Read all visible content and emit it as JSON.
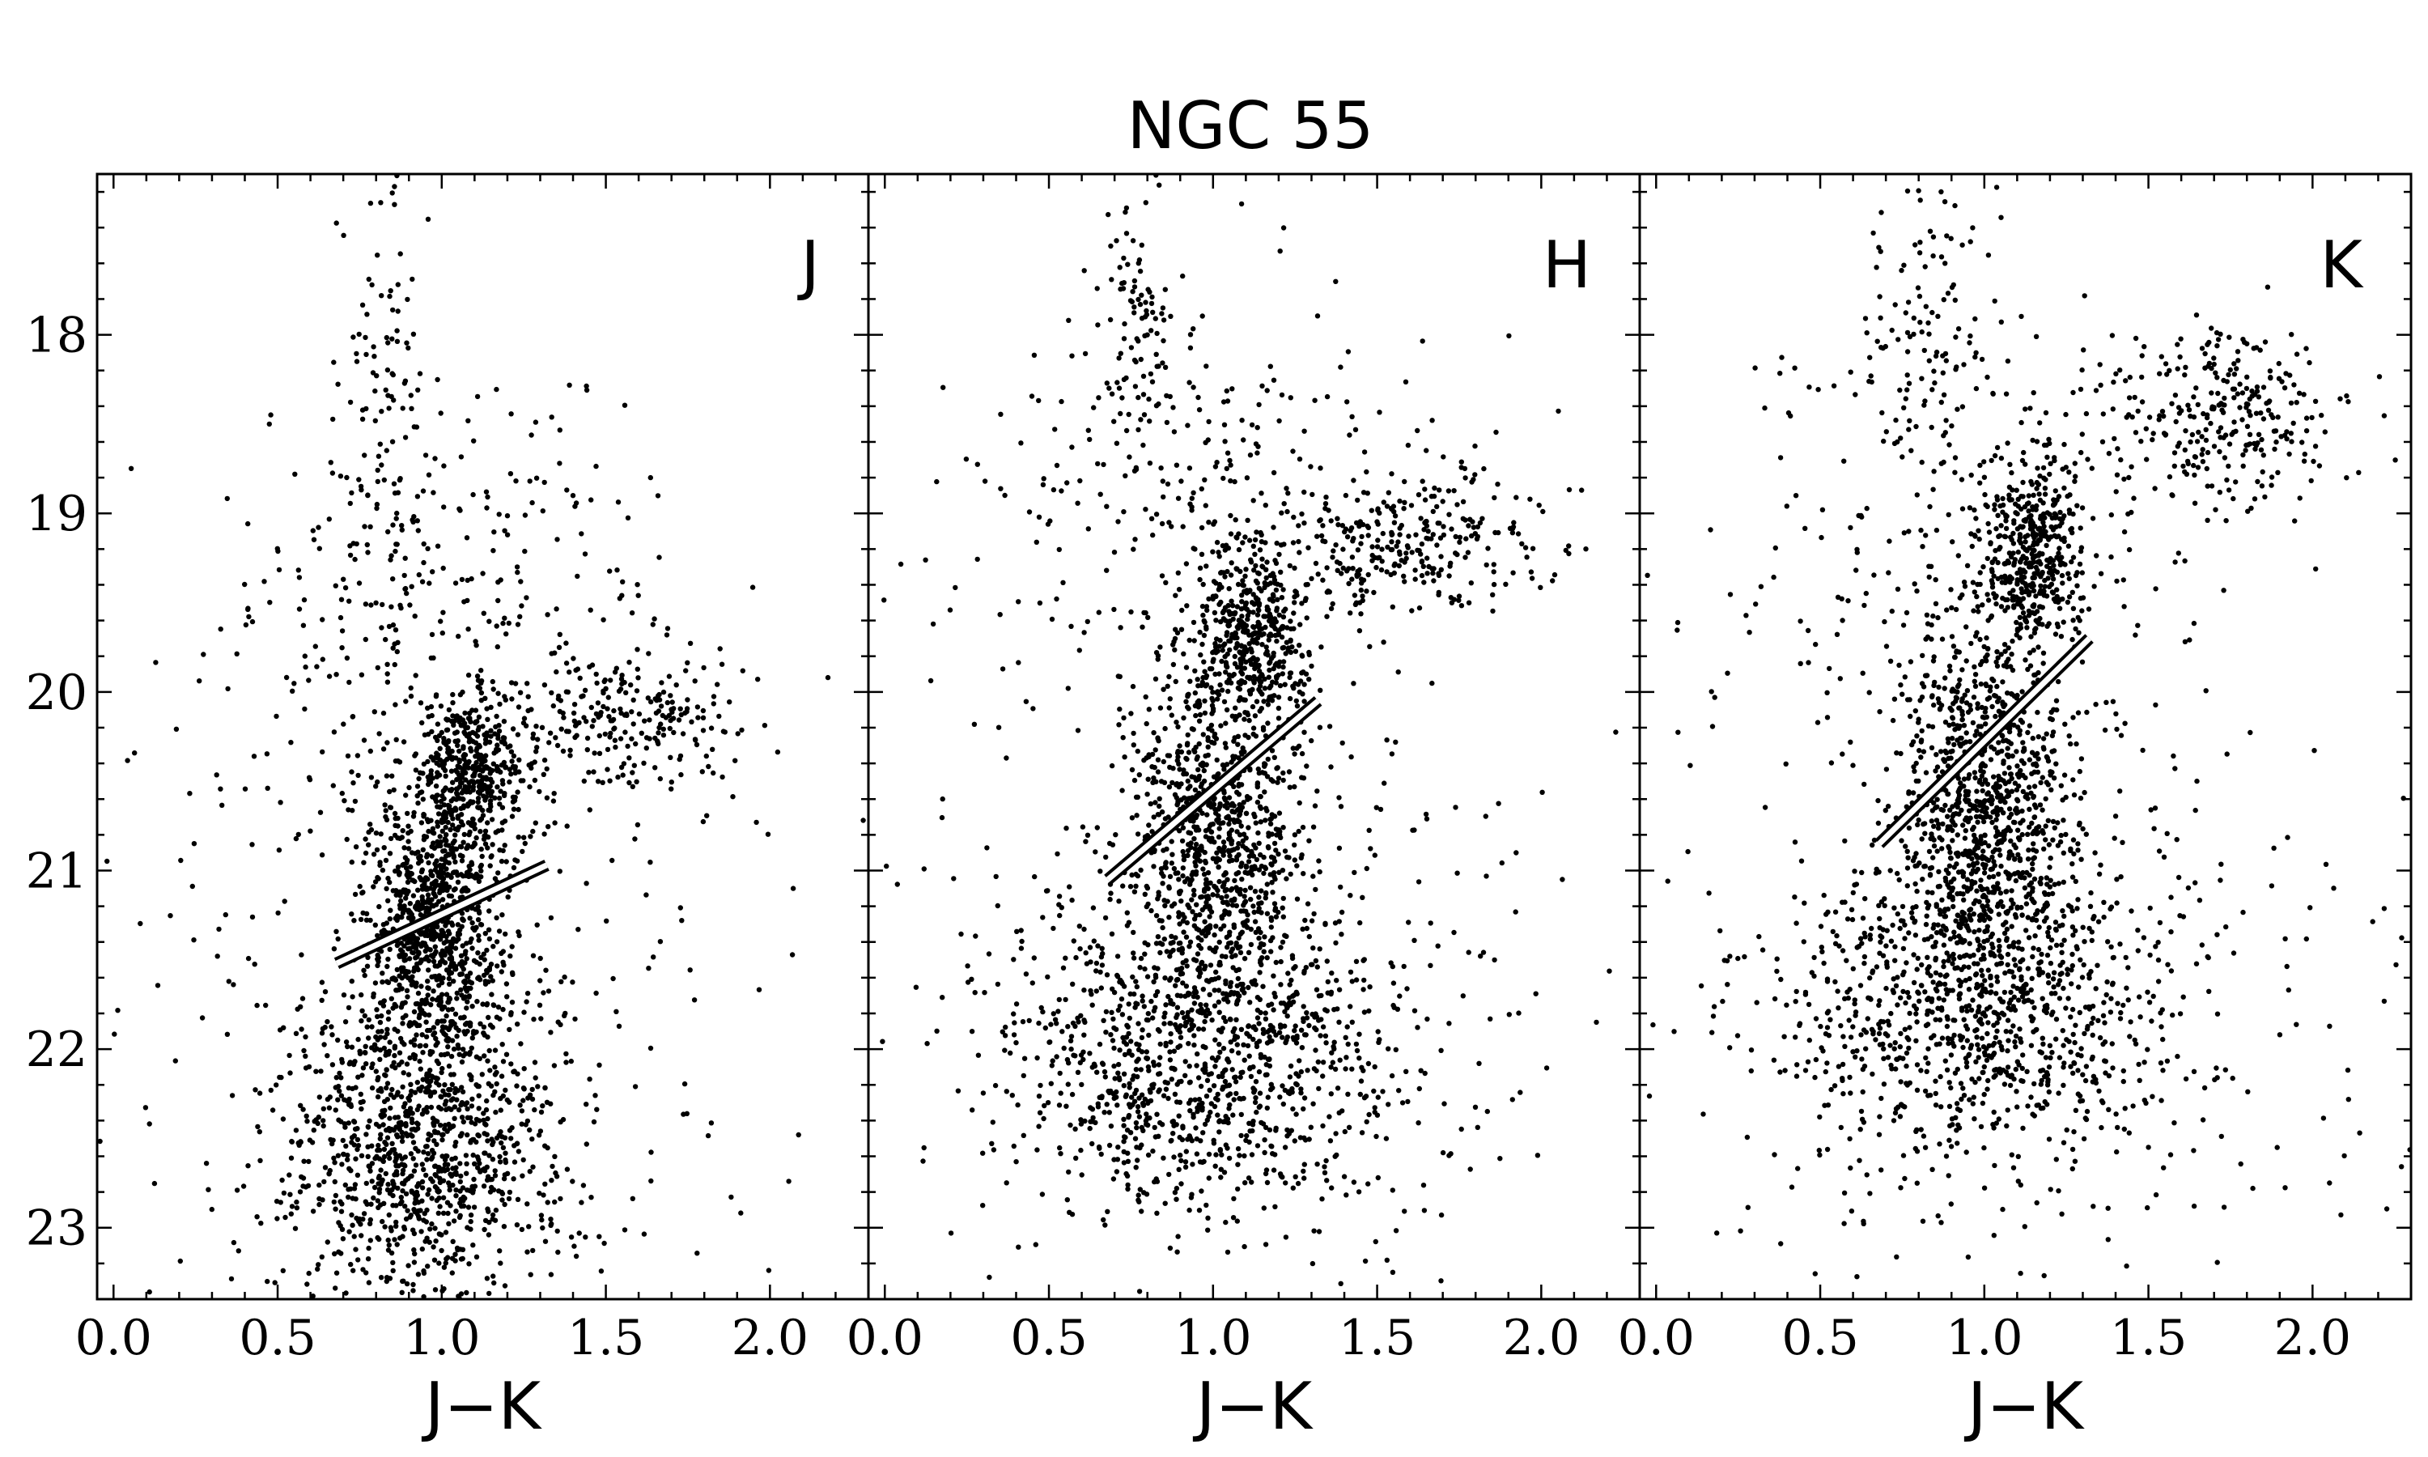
{
  "figure": {
    "title": "NGC 55"
  },
  "chart_data": [
    {
      "type": "scatter",
      "panel_label": "J",
      "xlabel": "J−K",
      "ylabel": "",
      "xlim": [
        -0.05,
        2.3
      ],
      "ylim": [
        23.4,
        17.1
      ],
      "y_inverted": true,
      "xticks": [
        "0.0",
        "0.5",
        "1.0",
        "1.5",
        "2.0"
      ],
      "yticks": [
        "18",
        "19",
        "20",
        "21",
        "22",
        "23"
      ],
      "grid": false,
      "marker_color": "#000000",
      "trgb_line": {
        "x": [
          0.68,
          1.32
        ],
        "y": [
          21.52,
          20.97
        ]
      },
      "distribution": [
        {
          "x": 1.08,
          "y": 20.45,
          "sx": 0.09,
          "sy": 0.22,
          "n": 420
        },
        {
          "x": 0.98,
          "y": 21.3,
          "sx": 0.11,
          "sy": 0.4,
          "n": 900
        },
        {
          "x": 0.95,
          "y": 22.5,
          "sx": 0.22,
          "sy": 0.45,
          "n": 1100
        },
        {
          "x": 1.6,
          "y": 20.15,
          "sx": 0.17,
          "sy": 0.18,
          "n": 220
        },
        {
          "x": 0.82,
          "y": 18.4,
          "sx": 0.06,
          "sy": 0.7,
          "n": 110
        },
        {
          "x": 1.0,
          "y": 19.5,
          "sx": 0.35,
          "sy": 0.55,
          "n": 300
        },
        {
          "x": 1.0,
          "y": 21.5,
          "sx": 0.6,
          "sy": 1.2,
          "n": 250
        }
      ]
    },
    {
      "type": "scatter",
      "panel_label": "H",
      "xlabel": "J−K",
      "ylabel": "",
      "xlim": [
        -0.05,
        2.3
      ],
      "ylim": [
        23.4,
        17.1
      ],
      "y_inverted": true,
      "xticks": [
        "0.0",
        "0.5",
        "1.0",
        "1.5",
        "2.0"
      ],
      "yticks": [
        "18",
        "19",
        "20",
        "21",
        "22",
        "23"
      ],
      "grid": false,
      "marker_color": "#000000",
      "trgb_line": {
        "x": [
          0.68,
          1.32
        ],
        "y": [
          21.05,
          20.05
        ]
      },
      "distribution": [
        {
          "x": 1.12,
          "y": 19.7,
          "sx": 0.09,
          "sy": 0.25,
          "n": 420
        },
        {
          "x": 1.0,
          "y": 20.8,
          "sx": 0.13,
          "sy": 0.45,
          "n": 900
        },
        {
          "x": 1.0,
          "y": 22.05,
          "sx": 0.3,
          "sy": 0.45,
          "n": 1100
        },
        {
          "x": 1.6,
          "y": 19.15,
          "sx": 0.2,
          "sy": 0.2,
          "n": 260
        },
        {
          "x": 0.78,
          "y": 17.9,
          "sx": 0.06,
          "sy": 0.5,
          "n": 110
        },
        {
          "x": 1.0,
          "y": 19.0,
          "sx": 0.35,
          "sy": 0.6,
          "n": 300
        },
        {
          "x": 1.0,
          "y": 21.2,
          "sx": 0.6,
          "sy": 1.2,
          "n": 250
        }
      ]
    },
    {
      "type": "scatter",
      "panel_label": "K",
      "xlabel": "J−K",
      "ylabel": "",
      "xlim": [
        -0.05,
        2.3
      ],
      "ylim": [
        23.4,
        17.1
      ],
      "y_inverted": true,
      "xticks": [
        "0.0",
        "0.5",
        "1.0",
        "1.5",
        "2.0"
      ],
      "yticks": [
        "18",
        "19",
        "20",
        "21",
        "22",
        "23"
      ],
      "grid": false,
      "marker_color": "#000000",
      "trgb_line": {
        "x": [
          0.68,
          1.32
        ],
        "y": [
          20.85,
          19.7
        ]
      },
      "distribution": [
        {
          "x": 1.15,
          "y": 19.25,
          "sx": 0.08,
          "sy": 0.28,
          "n": 420
        },
        {
          "x": 1.0,
          "y": 20.6,
          "sx": 0.13,
          "sy": 0.5,
          "n": 900
        },
        {
          "x": 1.0,
          "y": 21.75,
          "sx": 0.3,
          "sy": 0.45,
          "n": 1000
        },
        {
          "x": 1.7,
          "y": 18.45,
          "sx": 0.2,
          "sy": 0.25,
          "n": 280
        },
        {
          "x": 0.85,
          "y": 17.9,
          "sx": 0.1,
          "sy": 0.6,
          "n": 120
        },
        {
          "x": 1.0,
          "y": 19.3,
          "sx": 0.4,
          "sy": 0.7,
          "n": 300
        },
        {
          "x": 1.1,
          "y": 21.8,
          "sx": 0.6,
          "sy": 0.9,
          "n": 250
        }
      ]
    }
  ]
}
